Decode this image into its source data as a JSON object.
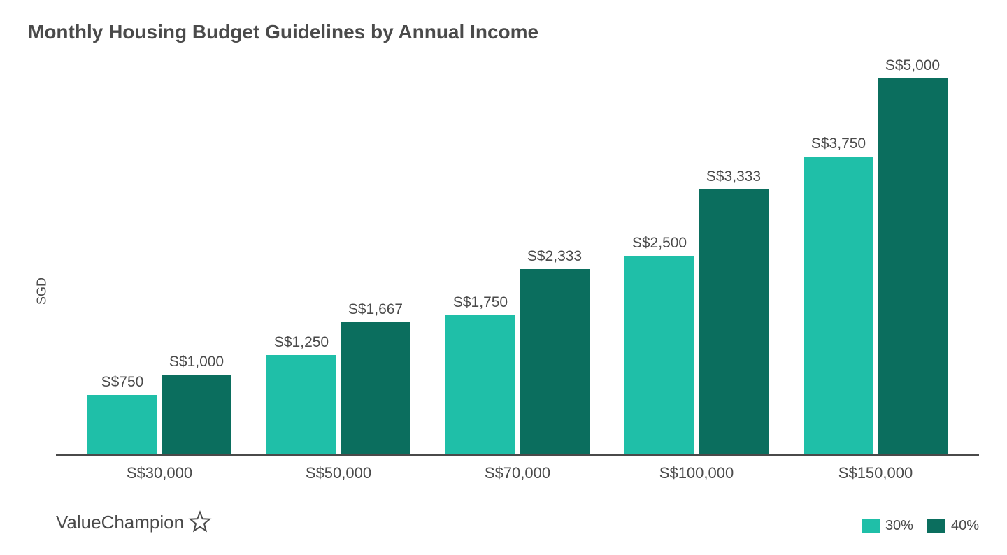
{
  "chart": {
    "type": "bar",
    "title": "Monthly Housing Budget Guidelines by Annual Income",
    "title_fontsize": 28,
    "ylabel": "SGD",
    "y_max": 5000,
    "background_color": "#ffffff",
    "axis_color": "#4a4a4a",
    "text_color": "#4a4a4a",
    "label_fontsize": 21,
    "xtick_fontsize": 22,
    "categories": [
      "S$30,000",
      "S$50,000",
      "S$70,000",
      "S$100,000",
      "S$150,000"
    ],
    "series": [
      {
        "name": "30%",
        "color": "#1fbfa8",
        "values": [
          750,
          1250,
          1750,
          2500,
          3750
        ],
        "labels": [
          "S$750",
          "S$1,250",
          "S$1,750",
          "S$2,500",
          "S$3,750"
        ]
      },
      {
        "name": "40%",
        "color": "#0b6e5e",
        "values": [
          1000,
          1667,
          2333,
          3333,
          5000
        ],
        "labels": [
          "S$1,000",
          "S$1,667",
          "S$2,333",
          "S$3,333",
          "S$5,000"
        ]
      }
    ]
  },
  "branding": {
    "name": "ValueChampion"
  }
}
